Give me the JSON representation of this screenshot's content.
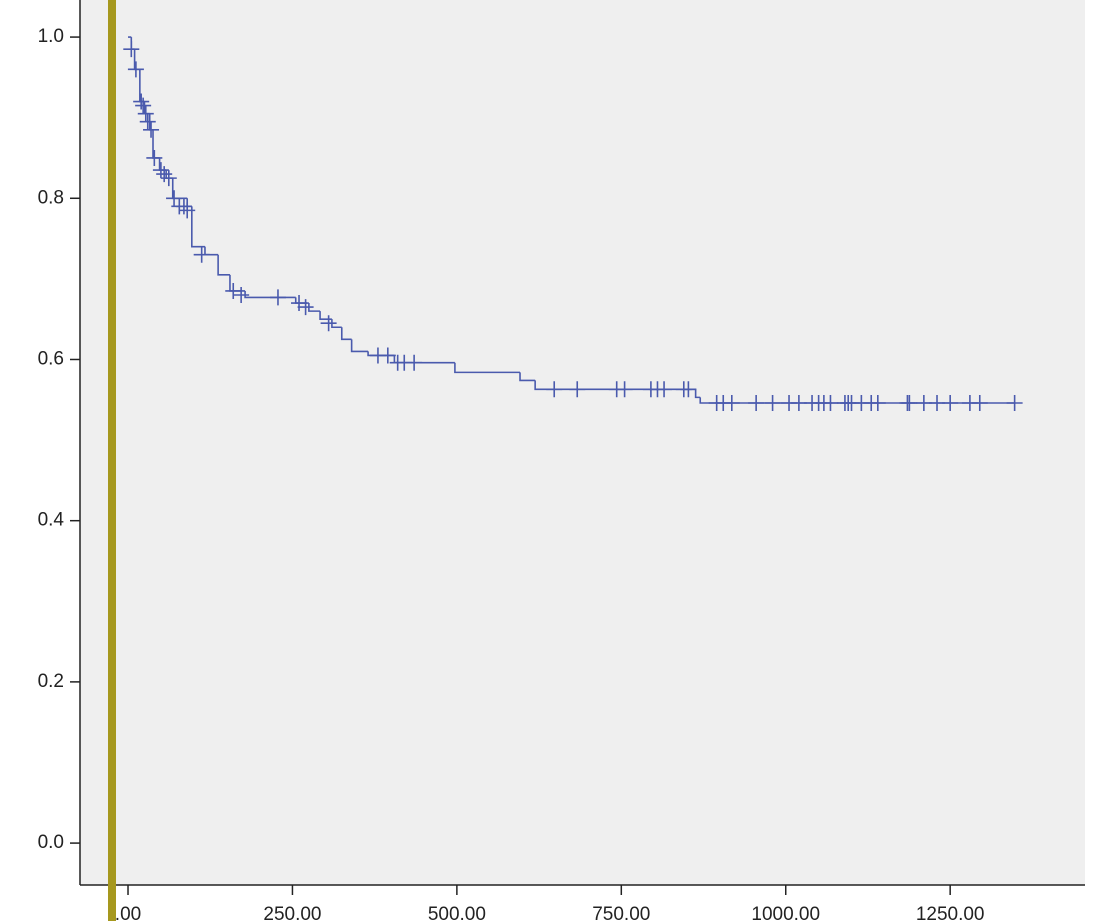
{
  "chart_data": {
    "type": "step",
    "color": "#4a5aad",
    "x": [
      0,
      5,
      10,
      18,
      25,
      33,
      38,
      48,
      58,
      68,
      90,
      97,
      117,
      137,
      155,
      178,
      255,
      275,
      292,
      310,
      325,
      340,
      365,
      405,
      497,
      596,
      619,
      863,
      870,
      1348
    ],
    "values": [
      1.0,
      0.985,
      0.96,
      0.92,
      0.905,
      0.885,
      0.85,
      0.835,
      0.825,
      0.8,
      0.79,
      0.74,
      0.73,
      0.705,
      0.685,
      0.677,
      0.67,
      0.66,
      0.65,
      0.64,
      0.625,
      0.61,
      0.605,
      0.596,
      0.584,
      0.574,
      0.563,
      0.553,
      0.546,
      0.546
    ],
    "censor_x": [
      5,
      12,
      20,
      23,
      27,
      30,
      35,
      40,
      50,
      55,
      62,
      70,
      78,
      85,
      90,
      112,
      160,
      172,
      228,
      260,
      270,
      305,
      380,
      395,
      410,
      420,
      435,
      648,
      683,
      743,
      755,
      795,
      805,
      815,
      845,
      852,
      895,
      905,
      918,
      955,
      980,
      1005,
      1020,
      1040,
      1050,
      1058,
      1068,
      1090,
      1095,
      1100,
      1115,
      1130,
      1140,
      1185,
      1188,
      1210,
      1230,
      1250,
      1280,
      1295,
      1348
    ],
    "censor_values": [
      0.985,
      0.96,
      0.92,
      0.915,
      0.905,
      0.895,
      0.885,
      0.85,
      0.835,
      0.83,
      0.825,
      0.8,
      0.79,
      0.79,
      0.785,
      0.73,
      0.685,
      0.68,
      0.677,
      0.67,
      0.665,
      0.645,
      0.605,
      0.605,
      0.596,
      0.596,
      0.596,
      0.563,
      0.563,
      0.563,
      0.563,
      0.563,
      0.563,
      0.563,
      0.563,
      0.563,
      0.546,
      0.546,
      0.546,
      0.546,
      0.546,
      0.546,
      0.546,
      0.546,
      0.546,
      0.546,
      0.546,
      0.546,
      0.546,
      0.546,
      0.546,
      0.546,
      0.546,
      0.546,
      0.546,
      0.546,
      0.546,
      0.546,
      0.546,
      0.546,
      0.546
    ],
    "xlim": [
      -73,
      1455
    ],
    "ylim": [
      -0.052,
      1.046
    ],
    "xticks": [
      {
        "value": 0,
        "label": ".00"
      },
      {
        "value": 250,
        "label": "250.00"
      },
      {
        "value": 500,
        "label": "500.00"
      },
      {
        "value": 750,
        "label": "750.00"
      },
      {
        "value": 1000,
        "label": "1000.00"
      },
      {
        "value": 1250,
        "label": "1250.00"
      }
    ],
    "yticks": [
      {
        "value": 0,
        "label": "0.0"
      },
      0.2,
      0.4,
      0.6,
      0.8,
      {
        "value": 1,
        "label": "1.0"
      }
    ],
    "grid": false
  }
}
